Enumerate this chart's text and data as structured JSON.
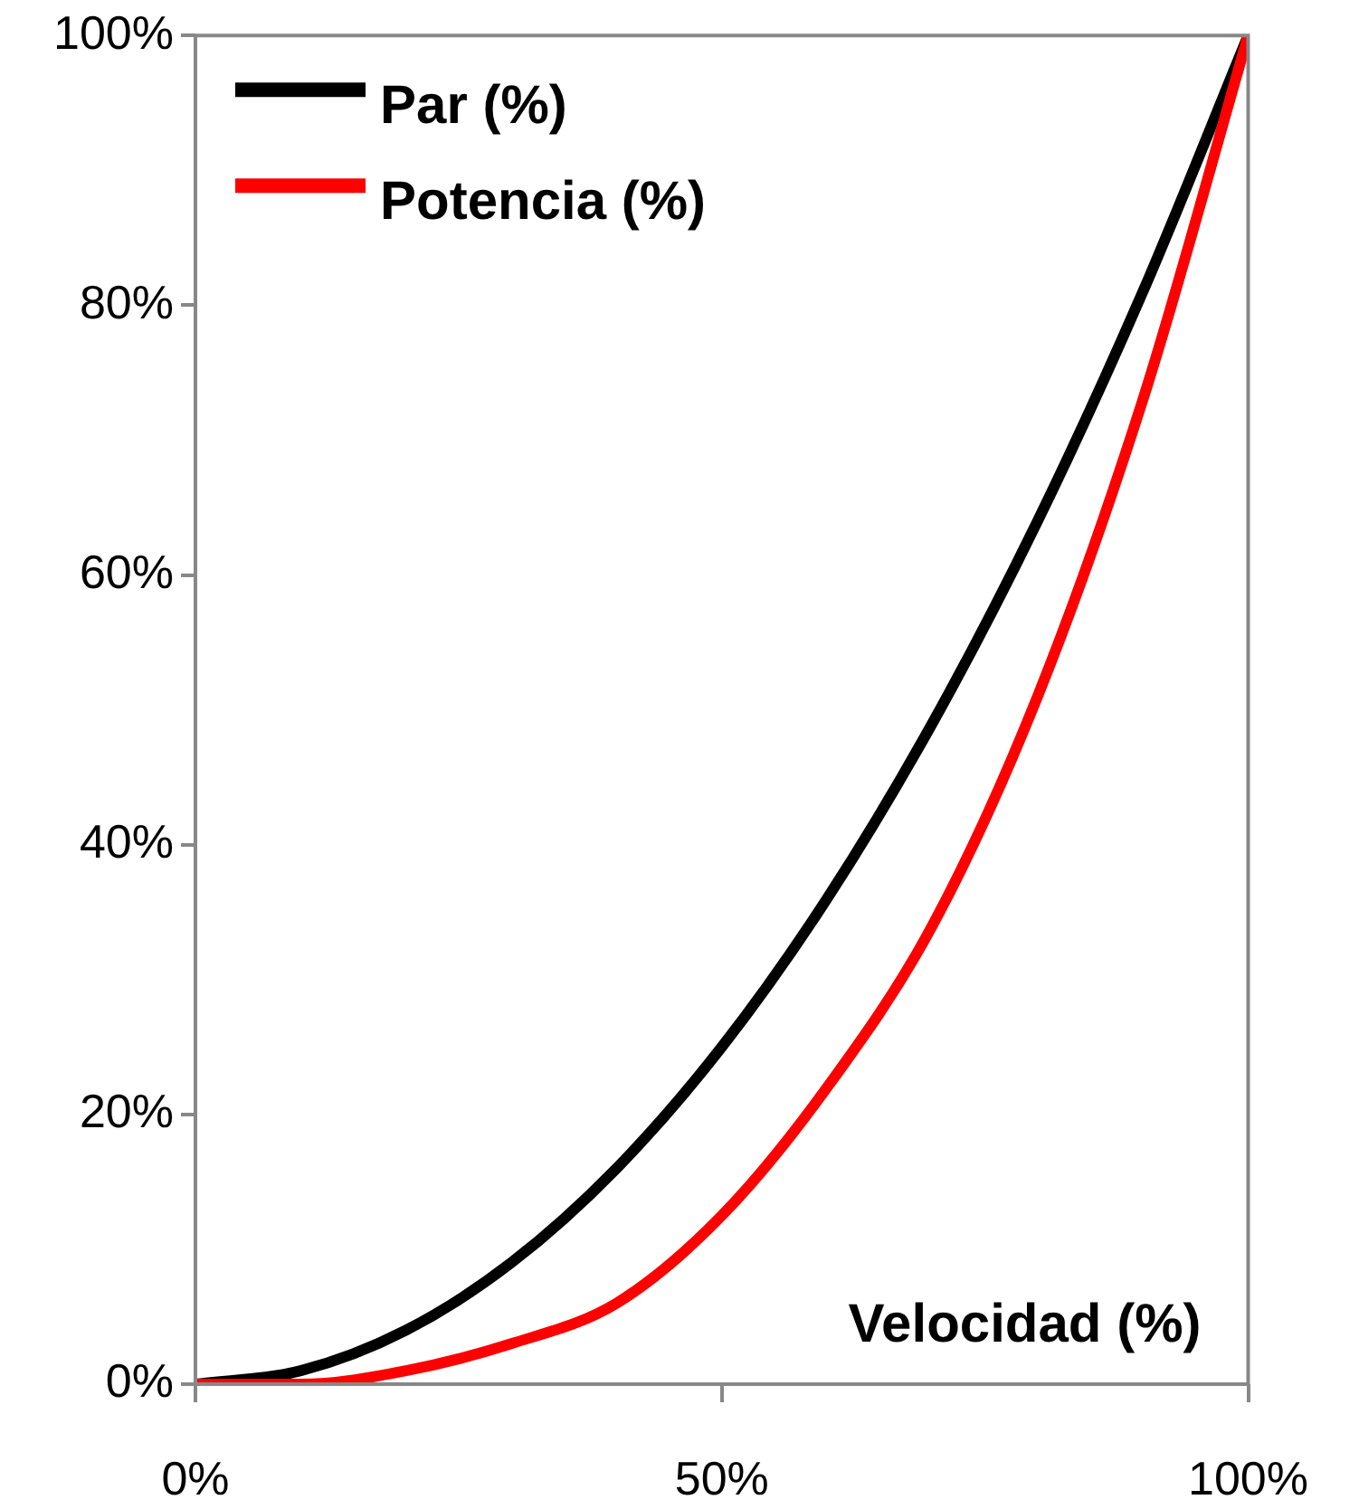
{
  "chart_data": {
    "type": "line",
    "xlabel": "Velocidad (%)",
    "x": [
      0,
      10,
      20,
      30,
      40,
      50,
      60,
      70,
      80,
      90,
      100
    ],
    "series": [
      {
        "name": "Par (%)",
        "color": "#000000",
        "values": [
          0,
          1,
          4,
          9,
          16,
          25,
          36,
          49,
          64,
          81,
          100
        ]
      },
      {
        "name": "Potencia (%)",
        "color": "#ff0000",
        "values": [
          0,
          0,
          1,
          3,
          6,
          12.5,
          22,
          34,
          51,
          73,
          100
        ]
      }
    ],
    "xlim": [
      0,
      100
    ],
    "ylim": [
      0,
      100
    ],
    "xticks": [
      {
        "value": 0,
        "label": "0%"
      },
      {
        "value": 50,
        "label": "50%"
      },
      {
        "value": 100,
        "label": "100%"
      }
    ],
    "yticks": [
      {
        "value": 0,
        "label": "0%"
      },
      {
        "value": 20,
        "label": "20%"
      },
      {
        "value": 40,
        "label": "40%"
      },
      {
        "value": 60,
        "label": "60%"
      },
      {
        "value": 80,
        "label": "80%"
      },
      {
        "value": 100,
        "label": "100%"
      }
    ],
    "grid": false,
    "legend": "top left",
    "marker": "none",
    "line_style": "solid"
  }
}
